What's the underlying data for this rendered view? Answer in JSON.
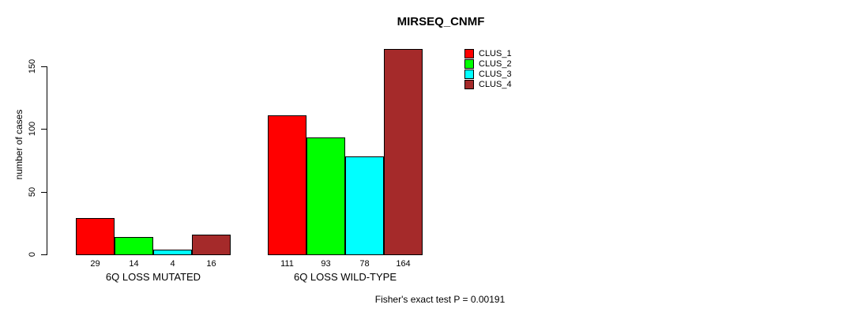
{
  "chart_data": {
    "type": "bar",
    "title": "MIRSEQ_CNMF",
    "ylabel": "number of cases",
    "xlabel": "",
    "ylim": [
      0,
      150
    ],
    "yticks": [
      0,
      50,
      100,
      150
    ],
    "grid": false,
    "legend_position": "top-right",
    "categories": [
      "6Q LOSS MUTATED",
      "6Q LOSS WILD-TYPE"
    ],
    "series": [
      {
        "name": "CLUS_1",
        "color": "#ff0000",
        "values": [
          29,
          111
        ]
      },
      {
        "name": "CLUS_2",
        "color": "#00ff00",
        "values": [
          14,
          93
        ]
      },
      {
        "name": "CLUS_3",
        "color": "#00ffff",
        "values": [
          4,
          78
        ]
      },
      {
        "name": "CLUS_4",
        "color": "#a52a2a",
        "values": [
          16,
          164
        ]
      }
    ],
    "bar_value_labels": true,
    "annotation": "Fisher's exact test P = 0.00191"
  }
}
